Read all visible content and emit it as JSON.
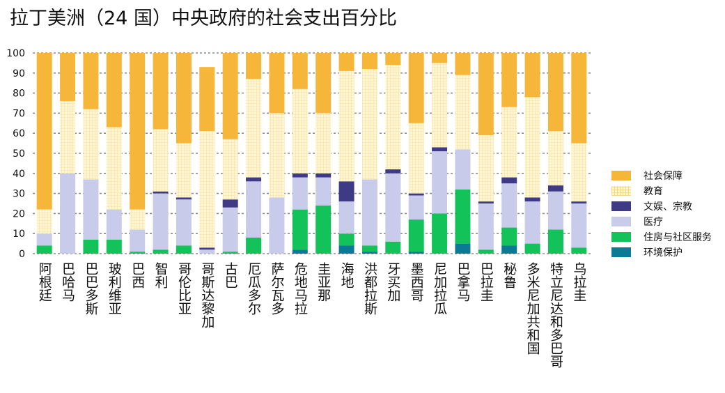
{
  "chart_data": {
    "type": "bar",
    "stacked": true,
    "title": "拉丁美洲（24 国）中央政府的社会支出百分比",
    "xlabel": "",
    "ylabel": "",
    "ylim": [
      0,
      100
    ],
    "yticks": [
      "0",
      "10",
      "20",
      "30",
      "40",
      "50",
      "60",
      "70",
      "80",
      "90",
      "100"
    ],
    "grid": true,
    "legend_position": "right",
    "categories": [
      "阿根廷",
      "巴哈马",
      "巴巴多斯",
      "玻利维亚",
      "巴西",
      "智利",
      "哥伦比亚",
      "哥斯达黎加",
      "古巴",
      "厄瓜多尔",
      "萨尔瓦多",
      "危地马拉",
      "圭亚那",
      "海地",
      "洪都拉斯",
      "牙买加",
      "墨西哥",
      "尼加拉瓜",
      "巴拿马",
      "巴拉圭",
      "秘鲁",
      "多米尼加共和国",
      "特立尼达和多巴哥",
      "乌拉圭"
    ],
    "series": [
      {
        "name": "环境保护",
        "color": "#0b7a96",
        "values": [
          0,
          0,
          0,
          0,
          0,
          0,
          0,
          0,
          0,
          0,
          0,
          2,
          0,
          4,
          1,
          0,
          1,
          0,
          5,
          0,
          4,
          0,
          0,
          0
        ]
      },
      {
        "name": "住房与社区服务",
        "color": "#14c25a",
        "values": [
          4,
          0,
          7,
          7,
          1,
          2,
          4,
          0,
          1,
          8,
          0,
          20,
          24,
          6,
          3,
          6,
          16,
          20,
          27,
          2,
          9,
          5,
          12,
          3
        ]
      },
      {
        "name": "医疗",
        "color": "#c9cbea",
        "values": [
          6,
          40,
          30,
          15,
          11,
          28,
          23,
          2,
          22,
          28,
          28,
          16,
          14,
          16,
          33,
          34,
          12,
          31,
          20,
          23,
          22,
          21,
          19,
          22
        ]
      },
      {
        "name": "文娱、宗教",
        "color": "#3e3a86",
        "values": [
          0,
          0,
          0,
          0,
          0,
          1,
          1,
          1,
          4,
          2,
          0,
          2,
          2,
          10,
          0,
          2,
          1,
          2,
          0,
          1,
          3,
          2,
          3,
          1
        ]
      },
      {
        "name": "教育",
        "color": "#fff4cf",
        "values": [
          12,
          36,
          35,
          41,
          10,
          31,
          27,
          58,
          30,
          49,
          42,
          42,
          30,
          55,
          55,
          52,
          35,
          42,
          37,
          33,
          35,
          50,
          27,
          29
        ]
      },
      {
        "name": "社会保障",
        "color": "#f5b63a",
        "values": [
          78,
          24,
          28,
          37,
          78,
          38,
          45,
          32,
          43,
          13,
          30,
          18,
          30,
          9,
          8,
          6,
          35,
          5,
          11,
          41,
          27,
          22,
          39,
          45
        ]
      }
    ],
    "legend_order": [
      "社会保障",
      "教育",
      "文娱、宗教",
      "医疗",
      "住房与社区服务",
      "环境保护"
    ]
  }
}
